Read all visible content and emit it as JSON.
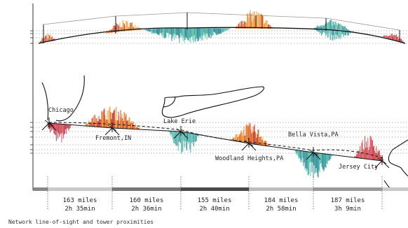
{
  "caption": "Network line-of-sight and tower proximities",
  "colors": {
    "warm": "#e8892c",
    "warm_dark": "#c43c2c",
    "cool": "#3aa6a0",
    "cool_dark": "#2a7f9a",
    "red": "#c8273a",
    "line": "#111111",
    "grid": "#555555",
    "bar_dark": "#555555",
    "bar_light": "#c9c9c9"
  },
  "cities": [
    {
      "name": "Chicago"
    },
    {
      "name": "Fremont,IN"
    },
    {
      "name": "Lake Erie"
    },
    {
      "name": "Woodland Heights,PA"
    },
    {
      "name": "Bella Vista,PA"
    },
    {
      "name": "Jersey City"
    }
  ],
  "segments": [
    {
      "miles": "163 miles",
      "time": "2h 35min"
    },
    {
      "miles": "160 miles",
      "time": "2h 36min"
    },
    {
      "miles": "155 miles",
      "time": "2h 40min"
    },
    {
      "miles": "184 miles",
      "time": "2h 58min"
    },
    {
      "miles": "187 miles",
      "time": "3h 9min"
    }
  ]
}
